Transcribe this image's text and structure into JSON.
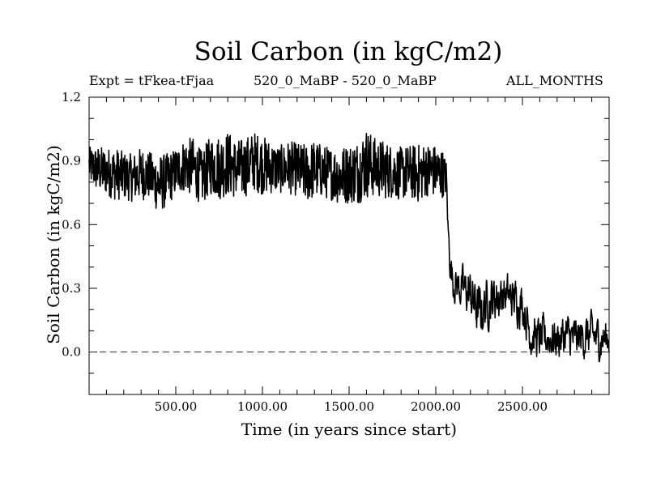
{
  "chart_data": {
    "type": "line",
    "title": "Soil Carbon (in kgC/m2)",
    "annotations": {
      "left": "Expt = tFkea-tFjaa",
      "center": "520_0_MaBP - 520_0_MaBP",
      "right": "ALL_MONTHS"
    },
    "xlabel": "Time (in years since start)",
    "ylabel": "Soil Carbon (in kgC/m2)",
    "xlim": [
      0,
      3000
    ],
    "ylim": [
      -0.2,
      1.2
    ],
    "x_ticks": [
      500,
      1000,
      1500,
      2000,
      2500
    ],
    "x_tick_labels": [
      "500.00",
      "1000.00",
      "1500.00",
      "2000.00",
      "2500.00"
    ],
    "y_ticks": [
      0.0,
      0.3,
      0.6,
      0.9,
      1.2
    ],
    "y_tick_labels": [
      "0.0",
      "0.3",
      "0.6",
      "0.9",
      "1.2"
    ],
    "reference_line": {
      "y": 0.0,
      "style": "dashed"
    },
    "series": [
      {
        "color": "#000000",
        "note_values": "approximate envelope of a noisy annual time series read off the plot",
        "x": [
          0,
          50,
          100,
          150,
          200,
          250,
          300,
          350,
          400,
          450,
          500,
          550,
          600,
          650,
          700,
          750,
          800,
          850,
          900,
          950,
          1000,
          1050,
          1100,
          1150,
          1200,
          1250,
          1300,
          1350,
          1400,
          1450,
          1500,
          1550,
          1600,
          1650,
          1700,
          1750,
          1800,
          1850,
          1900,
          1950,
          2000,
          2040,
          2060,
          2070,
          2080,
          2100,
          2150,
          2200,
          2250,
          2300,
          2350,
          2400,
          2450,
          2500,
          2550,
          2600,
          2650,
          2700,
          2750,
          2800,
          2850,
          2900,
          2950,
          3000
        ],
        "y": [
          0.88,
          0.86,
          0.85,
          0.84,
          0.83,
          0.82,
          0.84,
          0.83,
          0.79,
          0.81,
          0.85,
          0.88,
          0.87,
          0.82,
          0.88,
          0.87,
          0.89,
          0.86,
          0.87,
          0.9,
          0.88,
          0.87,
          0.86,
          0.87,
          0.86,
          0.84,
          0.86,
          0.85,
          0.84,
          0.83,
          0.84,
          0.85,
          0.89,
          0.87,
          0.86,
          0.85,
          0.84,
          0.85,
          0.84,
          0.86,
          0.85,
          0.84,
          0.82,
          0.6,
          0.45,
          0.33,
          0.3,
          0.27,
          0.18,
          0.24,
          0.26,
          0.27,
          0.25,
          0.23,
          0.08,
          0.06,
          0.07,
          0.06,
          0.08,
          0.06,
          0.07,
          0.08,
          0.06,
          0.07
        ],
        "amplitude": [
          0.06,
          0.08,
          0.08,
          0.09,
          0.08,
          0.08,
          0.09,
          0.08,
          0.1,
          0.09,
          0.08,
          0.09,
          0.1,
          0.09,
          0.1,
          0.11,
          0.11,
          0.1,
          0.1,
          0.1,
          0.1,
          0.09,
          0.08,
          0.09,
          0.09,
          0.1,
          0.1,
          0.09,
          0.09,
          0.1,
          0.1,
          0.11,
          0.12,
          0.1,
          0.1,
          0.09,
          0.09,
          0.09,
          0.1,
          0.09,
          0.09,
          0.08,
          0.06,
          0.03,
          0.05,
          0.05,
          0.06,
          0.07,
          0.08,
          0.07,
          0.07,
          0.06,
          0.06,
          0.06,
          0.06,
          0.06,
          0.06,
          0.06,
          0.06,
          0.06,
          0.06,
          0.06,
          0.06,
          0.05
        ]
      }
    ]
  }
}
